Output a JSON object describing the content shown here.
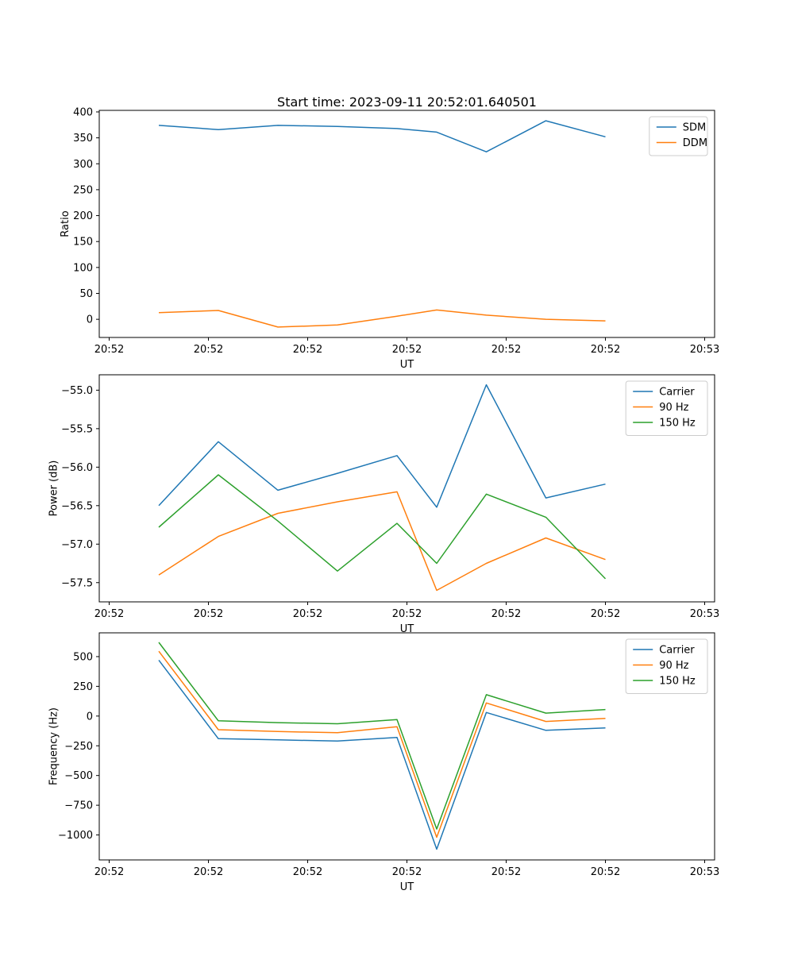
{
  "figure": {
    "title": "Start time: 2023-09-11 20:52:01.640501",
    "background": "#ffffff"
  },
  "colors": {
    "blue": "#1f77b4",
    "orange": "#ff7f0e",
    "green": "#2ca02c"
  },
  "chart_data": [
    {
      "type": "line",
      "name": "ratio",
      "title": "Start time: 2023-09-11 20:52:01.640501",
      "xlabel": "UT",
      "ylabel": "Ratio",
      "x_seconds": [
        5,
        11,
        17,
        23,
        29,
        33,
        38,
        44,
        50
      ],
      "xlim": [
        -1,
        61
      ],
      "x_ticks_seconds": [
        0,
        10,
        20,
        30,
        40,
        50,
        60
      ],
      "x_tick_labels": [
        "20:52",
        "20:52",
        "20:52",
        "20:52",
        "20:52",
        "20:52",
        "20:53"
      ],
      "ylim": [
        -35,
        403
      ],
      "y_ticks": [
        0,
        50,
        100,
        150,
        200,
        250,
        300,
        350,
        400
      ],
      "y_tick_decimals": 0,
      "grid": false,
      "legend_position": "upper right",
      "series": [
        {
          "name": "SDM",
          "color": "#1f77b4",
          "values": [
            374,
            366,
            374,
            372,
            368,
            361,
            323,
            383,
            352
          ]
        },
        {
          "name": "DDM",
          "color": "#ff7f0e",
          "values": [
            13,
            17,
            -15,
            -11,
            6,
            18,
            8,
            0,
            -3
          ]
        }
      ]
    },
    {
      "type": "line",
      "name": "power",
      "title": "",
      "xlabel": "UT",
      "ylabel": "Power (dB)",
      "x_seconds": [
        5,
        11,
        17,
        23,
        29,
        33,
        38,
        44,
        50
      ],
      "xlim": [
        -1,
        61
      ],
      "x_ticks_seconds": [
        0,
        10,
        20,
        30,
        40,
        50,
        60
      ],
      "x_tick_labels": [
        "20:52",
        "20:52",
        "20:52",
        "20:52",
        "20:52",
        "20:52",
        "20:53"
      ],
      "ylim": [
        -57.75,
        -54.8
      ],
      "y_ticks": [
        -57.5,
        -57.0,
        -56.5,
        -56.0,
        -55.5,
        -55.0
      ],
      "y_tick_decimals": 1,
      "grid": false,
      "legend_position": "upper right",
      "series": [
        {
          "name": "Carrier",
          "color": "#1f77b4",
          "values": [
            -56.5,
            -55.67,
            -56.3,
            -56.08,
            -55.85,
            -56.52,
            -54.93,
            -56.4,
            -56.22
          ]
        },
        {
          "name": "90 Hz",
          "color": "#ff7f0e",
          "values": [
            -57.4,
            -56.9,
            -56.6,
            -56.45,
            -56.32,
            -57.6,
            -57.25,
            -56.92,
            -57.2
          ]
        },
        {
          "name": "150 Hz",
          "color": "#2ca02c",
          "values": [
            -56.78,
            -56.1,
            -56.7,
            -57.35,
            -56.73,
            -57.25,
            -56.35,
            -56.65,
            -57.45
          ]
        }
      ]
    },
    {
      "type": "line",
      "name": "frequency",
      "title": "",
      "xlabel": "UT",
      "ylabel": "Frequency (Hz)",
      "x_seconds": [
        5,
        11,
        17,
        23,
        29,
        33,
        38,
        44,
        50
      ],
      "xlim": [
        -1,
        61
      ],
      "x_ticks_seconds": [
        0,
        10,
        20,
        30,
        40,
        50,
        60
      ],
      "x_tick_labels": [
        "20:52",
        "20:52",
        "20:52",
        "20:52",
        "20:52",
        "20:52",
        "20:53"
      ],
      "ylim": [
        -1210,
        700
      ],
      "y_ticks": [
        -1000,
        -750,
        -500,
        -250,
        0,
        250,
        500
      ],
      "y_tick_decimals": 0,
      "grid": false,
      "legend_position": "upper right",
      "series": [
        {
          "name": "Carrier",
          "color": "#1f77b4",
          "values": [
            470,
            -190,
            -200,
            -210,
            -180,
            -1120,
            30,
            -120,
            -100
          ]
        },
        {
          "name": "90 Hz",
          "color": "#ff7f0e",
          "values": [
            545,
            -115,
            -130,
            -140,
            -90,
            -1020,
            110,
            -45,
            -20
          ]
        },
        {
          "name": "150 Hz",
          "color": "#2ca02c",
          "values": [
            620,
            -40,
            -55,
            -65,
            -30,
            -950,
            180,
            25,
            55
          ]
        }
      ]
    }
  ]
}
